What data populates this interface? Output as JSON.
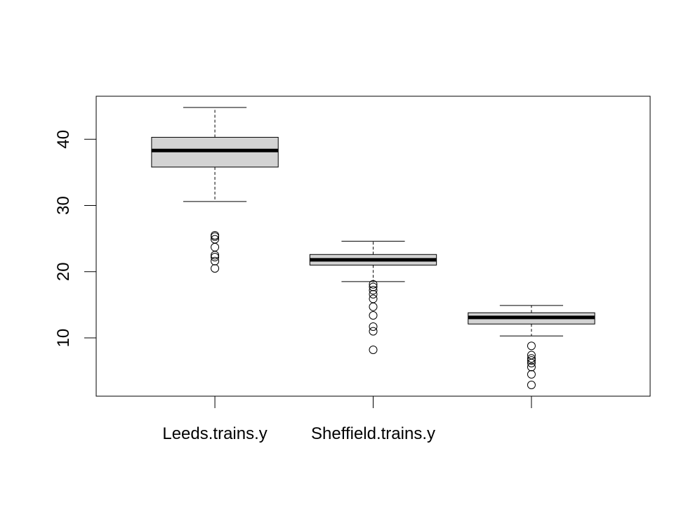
{
  "chart_data": {
    "type": "boxplot",
    "title": "",
    "xlabel": "",
    "ylabel": "",
    "ylim": [
      1.2,
      46.5
    ],
    "yticks": [
      "10",
      "20",
      "30",
      "40"
    ],
    "categories": [
      "Leeds.trains.y",
      "Sheffield.trains.y",
      ""
    ],
    "boxes": [
      {
        "name": "Leeds.trains.y",
        "whisker_low": 30.6,
        "q1": 35.8,
        "median": 38.3,
        "q3": 40.3,
        "whisker_high": 44.8,
        "outliers": [
          25.5,
          25.3,
          24.9,
          23.7,
          22.5,
          22.2,
          21.6,
          20.5
        ]
      },
      {
        "name": "Sheffield.trains.y",
        "whisker_low": 18.5,
        "q1": 21.0,
        "median": 21.8,
        "q3": 22.6,
        "whisker_high": 24.6,
        "outliers": [
          18.1,
          17.7,
          17.2,
          16.6,
          15.9,
          14.7,
          13.4,
          11.7,
          11.0,
          8.2
        ]
      },
      {
        "name": "",
        "whisker_low": 10.3,
        "q1": 12.1,
        "median": 13.1,
        "q3": 13.8,
        "whisker_high": 14.9,
        "outliers": [
          8.8,
          7.4,
          6.9,
          6.6,
          6.2,
          5.6,
          4.5,
          2.9
        ]
      }
    ],
    "box_fill": "#d3d3d3",
    "line_color": "#000000"
  }
}
